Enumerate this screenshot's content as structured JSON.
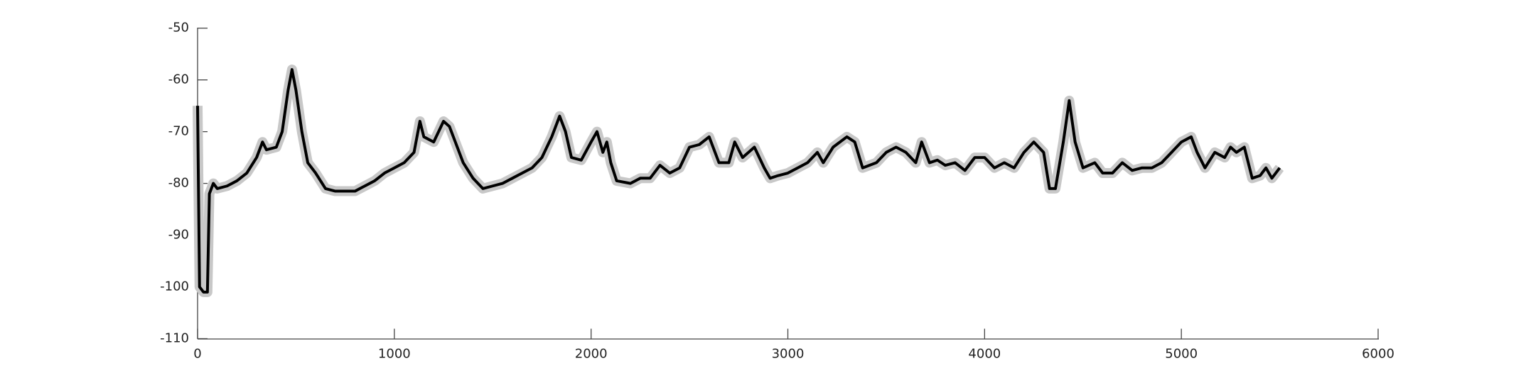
{
  "chart_data": {
    "type": "line",
    "x": [
      0,
      10,
      30,
      50,
      60,
      80,
      100,
      150,
      200,
      250,
      300,
      330,
      350,
      400,
      430,
      460,
      480,
      500,
      530,
      560,
      600,
      650,
      700,
      800,
      850,
      900,
      950,
      1000,
      1050,
      1100,
      1130,
      1150,
      1200,
      1250,
      1280,
      1300,
      1350,
      1400,
      1450,
      1500,
      1550,
      1600,
      1650,
      1700,
      1750,
      1800,
      1840,
      1870,
      1900,
      1950,
      2000,
      2030,
      2060,
      2080,
      2100,
      2130,
      2200,
      2250,
      2300,
      2350,
      2400,
      2450,
      2500,
      2550,
      2600,
      2650,
      2700,
      2730,
      2770,
      2830,
      2880,
      2910,
      2950,
      3000,
      3050,
      3100,
      3150,
      3180,
      3230,
      3300,
      3340,
      3380,
      3450,
      3500,
      3550,
      3600,
      3650,
      3680,
      3720,
      3760,
      3800,
      3850,
      3900,
      3950,
      4000,
      4050,
      4100,
      4150,
      4200,
      4250,
      4300,
      4330,
      4360,
      4400,
      4430,
      4460,
      4500,
      4560,
      4600,
      4650,
      4700,
      4750,
      4800,
      4850,
      4900,
      4950,
      5000,
      5050,
      5080,
      5120,
      5170,
      5220,
      5250,
      5280,
      5320,
      5360,
      5400,
      5430,
      5460,
      5500
    ],
    "series": [
      {
        "color": "#000000",
        "values": [
          -65,
          -100,
          -101,
          -101,
          -82,
          -80,
          -81,
          -80.5,
          -79.5,
          -78,
          -75,
          -72,
          -73.5,
          -73,
          -70,
          -62,
          -58,
          -62,
          -70,
          -76,
          -78,
          -81,
          -81.5,
          -81.5,
          -80.5,
          -79.5,
          -78,
          -77,
          -76,
          -74,
          -68,
          -71,
          -72,
          -68,
          -69,
          -71,
          -76,
          -79,
          -81,
          -80.5,
          -80,
          -79,
          -78,
          -77,
          -75,
          -71,
          -67,
          -70,
          -75,
          -75.5,
          -72,
          -70,
          -74,
          -72,
          -76,
          -79.5,
          -80,
          -79,
          -79,
          -76.5,
          -78,
          -77,
          -73,
          -72.5,
          -71,
          -76,
          -76,
          -72,
          -75,
          -73,
          -77,
          -79,
          -78.5,
          -78,
          -77,
          -76,
          -74,
          -76,
          -73,
          -71,
          -72,
          -77,
          -76,
          -74,
          -73,
          -74,
          -76,
          -72,
          -76,
          -75.5,
          -76.5,
          -76,
          -77.5,
          -75,
          -75,
          -77,
          -76,
          -77,
          -74,
          -72,
          -74,
          -81,
          -81,
          -72,
          -64,
          -72,
          -77,
          -76,
          -78,
          -78,
          -76,
          -77.5,
          -77,
          -77,
          -76,
          -74,
          -72,
          -71,
          -74,
          -77,
          -74,
          -75,
          -73,
          -74,
          -73,
          -79,
          -78.5,
          -77,
          -79,
          -77
        ]
      }
    ],
    "band_color": "#c8c8c8",
    "xlim": [
      0,
      6000
    ],
    "xticks": [
      0,
      1000,
      2000,
      3000,
      4000,
      5000,
      6000
    ],
    "ylim": [
      -110,
      -50
    ],
    "yticks": [
      -50,
      -60,
      -70,
      -80,
      -90,
      -100,
      -110
    ]
  }
}
